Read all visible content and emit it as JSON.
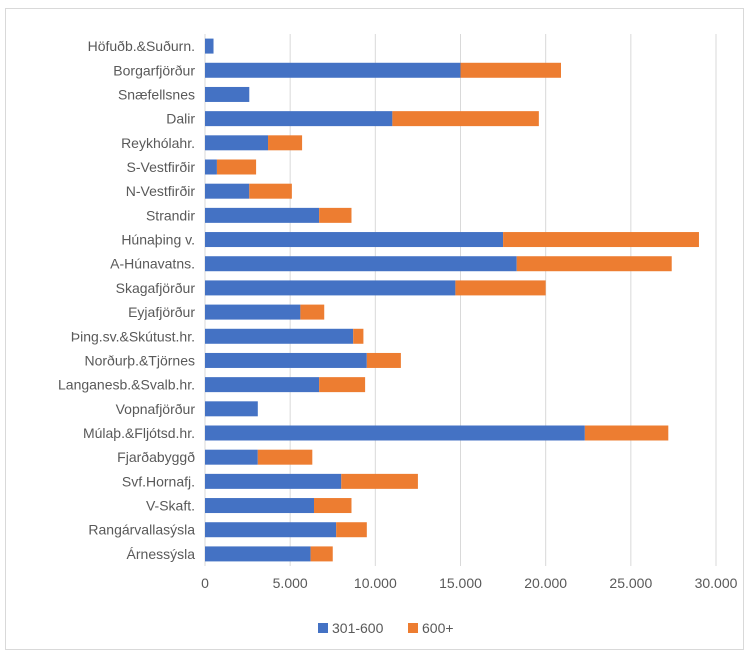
{
  "chart_data": {
    "type": "bar",
    "orientation": "horizontal",
    "stacked": true,
    "title": "",
    "xlabel": "",
    "ylabel": "",
    "xlim": [
      0,
      30000
    ],
    "x_ticks": [
      0,
      5000,
      10000,
      15000,
      20000,
      25000,
      30000
    ],
    "x_tick_labels": [
      "0",
      "5.000",
      "10.000",
      "15.000",
      "20.000",
      "25.000",
      "30.000"
    ],
    "grid": "vertical",
    "legend_position": "bottom",
    "categories": [
      "Höfuðb.&Suðurn.",
      "Borgarfjörður",
      "Snæfellsnes",
      "Dalir",
      "Reykhólahr.",
      "S-Vestfirðir",
      "N-Vestfirðir",
      "Strandir",
      "Húnaþing v.",
      "A-Húnavatns.",
      "Skagafjörður",
      "Eyjafjörður",
      "Þing.sv.&Skútust.hr.",
      "Norðurþ.&Tjörnes",
      "Langanesb.&Svalb.hr.",
      "Vopnafjörður",
      "Múlaþ.&Fljótsd.hr.",
      "Fjarðabyggð",
      "Svf.Hornafj.",
      "V-Skaft.",
      "Rangárvallasýsla",
      "Árnessýsla"
    ],
    "series": [
      {
        "name": "301-600",
        "color": "#4472C4",
        "values": [
          500,
          15000,
          2600,
          11000,
          3700,
          700,
          2600,
          6700,
          17500,
          18300,
          14700,
          5600,
          8700,
          9500,
          6700,
          3100,
          22300,
          3100,
          8000,
          6400,
          7700,
          6200
        ]
      },
      {
        "name": "600+",
        "color": "#ED7D31",
        "values": [
          0,
          5900,
          0,
          8600,
          2000,
          2300,
          2500,
          1900,
          11500,
          9100,
          5300,
          1400,
          600,
          2000,
          2700,
          0,
          4900,
          3200,
          4500,
          2200,
          1800,
          1300
        ]
      }
    ]
  }
}
